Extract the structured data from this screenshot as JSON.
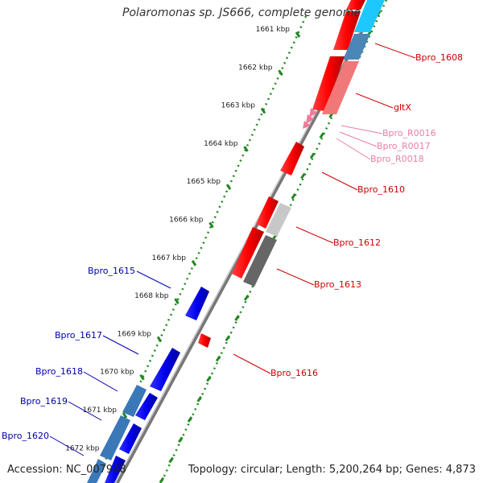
{
  "title": "Polaromonas sp. JS666, complete genome",
  "accession": "Accession: NC_007948",
  "topology": "Topology: circular; Length: 5,200,264 bp; Genes: 4,873",
  "colors": {
    "forward_gene": "#ff0000",
    "reverse_gene": "#0000ee",
    "forward_rna": "#f07a9a",
    "forward_label": "#cc0000",
    "reverse_label": "#0000aa",
    "rna_label": "#e87fa6",
    "tick": "#228822",
    "backbone": "#888888"
  },
  "scale_ticks": [
    {
      "kbp": 1661,
      "label": "1661 kbp"
    },
    {
      "kbp": 1662,
      "label": "1662 kbp"
    },
    {
      "kbp": 1663,
      "label": "1663 kbp"
    },
    {
      "kbp": 1664,
      "label": "1664 kbp"
    },
    {
      "kbp": 1665,
      "label": "1665 kbp"
    },
    {
      "kbp": 1666,
      "label": "1666 kbp"
    },
    {
      "kbp": 1667,
      "label": "1667 kbp"
    },
    {
      "kbp": 1668,
      "label": "1668 kbp"
    },
    {
      "kbp": 1669,
      "label": "1669 kbp"
    },
    {
      "kbp": 1670,
      "label": "1670 kbp"
    },
    {
      "kbp": 1671,
      "label": "1671 kbp"
    },
    {
      "kbp": 1672,
      "label": "1672 kbp"
    }
  ],
  "genes_forward": [
    {
      "label": "Bpro_1608",
      "color": "#ff0000"
    },
    {
      "label": "gltX",
      "color": "#ff0000"
    },
    {
      "label": "Bpro_R0016",
      "color": "#f07a9a"
    },
    {
      "label": "Bpro_R0017",
      "color": "#f07a9a"
    },
    {
      "label": "Bpro_R0018",
      "color": "#f07a9a"
    },
    {
      "label": "Bpro_1610",
      "color": "#ff0000"
    },
    {
      "label": "Bpro_1612",
      "color": "#ff0000"
    },
    {
      "label": "Bpro_1613",
      "color": "#ff0000"
    },
    {
      "label": "Bpro_1616",
      "color": "#ff0000"
    }
  ],
  "genes_reverse": [
    {
      "label": "Bpro_1615",
      "color": "#0000ee"
    },
    {
      "label": "Bpro_1617",
      "color": "#0000ee"
    },
    {
      "label": "Bpro_1618",
      "color": "#0000ee"
    },
    {
      "label": "Bpro_1619",
      "color": "#0000ee"
    },
    {
      "label": "Bpro_1620",
      "color": "#0000ee"
    }
  ]
}
